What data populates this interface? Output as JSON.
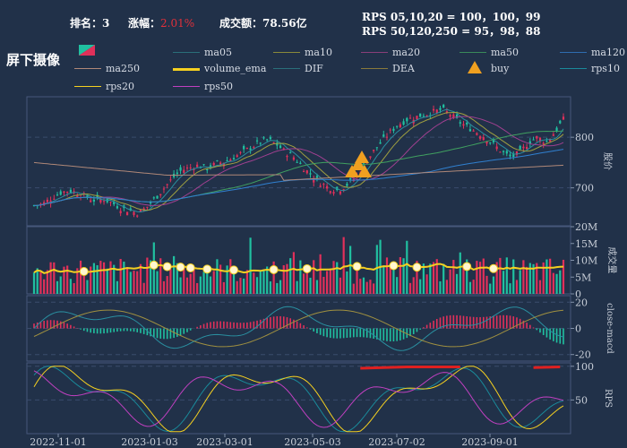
{
  "header": {
    "rank_label": "排名：",
    "rank_value": "3",
    "change_label": "涨幅：",
    "change_value": "2.01%",
    "turnover_label": "成交额：",
    "turnover_value": "78.56亿",
    "rps_line1": "RPS 05,10,20 = 100，100，99",
    "rps_line2": "RPS 50,120,250 = 95，98，88"
  },
  "title": "屏下摄像",
  "legend": [
    {
      "label": "ma05",
      "color": "#2a6f7a",
      "kind": "line"
    },
    {
      "label": "ma10",
      "color": "#8a8a3a",
      "kind": "line"
    },
    {
      "label": "ma20",
      "color": "#8a3f7a",
      "kind": "line"
    },
    {
      "label": "ma50",
      "color": "#3a8a5a",
      "kind": "line"
    },
    {
      "label": "ma120",
      "color": "#2f6db0",
      "kind": "line"
    },
    {
      "label": "ma250",
      "color": "#b08878",
      "kind": "line"
    },
    {
      "label": "volume_ema",
      "color": "#f5d020",
      "kind": "thick"
    },
    {
      "label": "DIF",
      "color": "#2a6f7a",
      "kind": "line"
    },
    {
      "label": "DEA",
      "color": "#8a7a3a",
      "kind": "line"
    },
    {
      "label": "buy",
      "color": "#f0a020",
      "kind": "triangle"
    },
    {
      "label": "rps10",
      "color": "#1a8a9a",
      "kind": "line"
    },
    {
      "label": "rps20",
      "color": "#f5d020",
      "kind": "line"
    },
    {
      "label": "rps50",
      "color": "#c040c0",
      "kind": "line"
    }
  ],
  "colors": {
    "up": "#e0305a",
    "down": "#20c0a0",
    "background": "#213149"
  },
  "chart_data": {
    "type": "candlestick+volume+macd+rps",
    "x_ticks": [
      "2022-11-01",
      "2023-01-03",
      "2023-03-01",
      "2023-05-03",
      "2023-07-02",
      "2023-09-01"
    ],
    "panels": [
      {
        "name": "price",
        "ylabel": "股价",
        "yticks": [
          700,
          800
        ],
        "ylim": [
          625,
          880
        ],
        "close_approx": [
          665,
          668,
          680,
          690,
          695,
          690,
          682,
          675,
          678,
          670,
          660,
          655,
          650,
          662,
          680,
          700,
          720,
          735,
          740,
          745,
          738,
          748,
          752,
          760,
          770,
          780,
          790,
          795,
          785,
          770,
          760,
          740,
          725,
          710,
          700,
          695,
          705,
          720,
          745,
          770,
          790,
          810,
          825,
          835,
          840,
          845,
          850,
          855,
          845,
          830,
          820,
          810,
          800,
          785,
          770,
          760,
          770,
          790,
          800,
          790,
          810,
          835
        ]
      },
      {
        "name": "volume",
        "ylabel": "成交量",
        "yticks": [
          "0",
          "5M",
          "10M",
          "15M",
          "20M"
        ],
        "ylim": [
          0,
          20
        ]
      },
      {
        "name": "macd",
        "ylabel": "close-macd",
        "yticks": [
          -20,
          0,
          20
        ],
        "ylim": [
          -25,
          25
        ]
      },
      {
        "name": "rps",
        "ylabel": "RPS",
        "yticks": [
          50,
          100
        ],
        "ylim": [
          0,
          105
        ]
      }
    ]
  }
}
